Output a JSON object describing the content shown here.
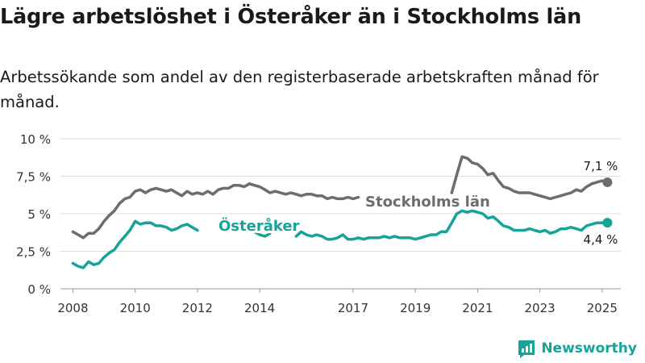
{
  "title": "Lägre arbetslöshet i Österåker än i Stockholms län",
  "subtitle": "Arbetssökande som andel av den registerbaserade arbetskraften månad för månad.",
  "brand": {
    "name": "Newsworthy",
    "icon": "bar-chart-logo-icon",
    "color": "#17A398"
  },
  "chart_data": {
    "type": "line",
    "ylim": [
      0,
      10
    ],
    "xlim": [
      2007.6,
      2025.6
    ],
    "yticks": [
      {
        "value": 0,
        "label": "0 %"
      },
      {
        "value": 2.5,
        "label": "2,5 %"
      },
      {
        "value": 5,
        "label": "5 %"
      },
      {
        "value": 7.5,
        "label": "7,5 %"
      },
      {
        "value": 10,
        "label": "10 %"
      }
    ],
    "xticks": [
      {
        "value": 2008,
        "label": "2008"
      },
      {
        "value": 2010,
        "label": "2010"
      },
      {
        "value": 2012,
        "label": "2012"
      },
      {
        "value": 2014,
        "label": "2014"
      },
      {
        "value": 2017,
        "label": "2017"
      },
      {
        "value": 2019,
        "label": "2019"
      },
      {
        "value": 2021,
        "label": "2021"
      },
      {
        "value": 2023,
        "label": "2023"
      },
      {
        "value": 2025,
        "label": "2025"
      }
    ],
    "grid": true,
    "series": [
      {
        "name": "Stockholms län",
        "color": "#6D6D6D",
        "end_label": "7,1 %",
        "segments": [
          [
            [
              2008.0,
              3.8
            ],
            [
              2008.17,
              3.6
            ],
            [
              2008.33,
              3.4
            ],
            [
              2008.5,
              3.7
            ],
            [
              2008.67,
              3.7
            ],
            [
              2008.83,
              4.0
            ],
            [
              2009.0,
              4.5
            ],
            [
              2009.17,
              4.9
            ],
            [
              2009.33,
              5.2
            ],
            [
              2009.5,
              5.7
            ],
            [
              2009.67,
              6.0
            ],
            [
              2009.83,
              6.1
            ],
            [
              2010.0,
              6.5
            ],
            [
              2010.17,
              6.6
            ],
            [
              2010.33,
              6.4
            ],
            [
              2010.5,
              6.6
            ],
            [
              2010.67,
              6.7
            ],
            [
              2010.83,
              6.6
            ],
            [
              2011.0,
              6.5
            ],
            [
              2011.17,
              6.6
            ],
            [
              2011.33,
              6.4
            ],
            [
              2011.5,
              6.2
            ],
            [
              2011.67,
              6.5
            ],
            [
              2011.83,
              6.3
            ],
            [
              2012.0,
              6.4
            ],
            [
              2012.17,
              6.3
            ],
            [
              2012.33,
              6.5
            ],
            [
              2012.5,
              6.3
            ],
            [
              2012.67,
              6.6
            ],
            [
              2012.83,
              6.7
            ],
            [
              2013.0,
              6.7
            ],
            [
              2013.17,
              6.9
            ],
            [
              2013.33,
              6.9
            ],
            [
              2013.5,
              6.8
            ],
            [
              2013.67,
              7.0
            ],
            [
              2013.83,
              6.9
            ],
            [
              2014.0,
              6.8
            ],
            [
              2014.17,
              6.6
            ],
            [
              2014.33,
              6.4
            ],
            [
              2014.5,
              6.5
            ],
            [
              2014.67,
              6.4
            ],
            [
              2014.83,
              6.3
            ],
            [
              2015.0,
              6.4
            ],
            [
              2015.17,
              6.3
            ],
            [
              2015.33,
              6.2
            ],
            [
              2015.5,
              6.3
            ],
            [
              2015.67,
              6.3
            ],
            [
              2015.83,
              6.2
            ],
            [
              2016.0,
              6.2
            ],
            [
              2016.17,
              6.0
            ],
            [
              2016.33,
              6.1
            ],
            [
              2016.5,
              6.0
            ],
            [
              2016.67,
              6.0
            ],
            [
              2016.83,
              6.1
            ],
            [
              2017.0,
              6.0
            ],
            [
              2017.17,
              6.1
            ]
          ],
          [
            [
              2020.17,
              6.4
            ],
            [
              2020.33,
              7.6
            ],
            [
              2020.5,
              8.8
            ],
            [
              2020.67,
              8.7
            ],
            [
              2020.83,
              8.4
            ],
            [
              2021.0,
              8.3
            ],
            [
              2021.17,
              8.0
            ],
            [
              2021.33,
              7.6
            ],
            [
              2021.5,
              7.7
            ],
            [
              2021.67,
              7.2
            ],
            [
              2021.83,
              6.8
            ],
            [
              2022.0,
              6.7
            ],
            [
              2022.17,
              6.5
            ],
            [
              2022.33,
              6.4
            ],
            [
              2022.5,
              6.4
            ],
            [
              2022.67,
              6.4
            ],
            [
              2022.83,
              6.3
            ],
            [
              2023.0,
              6.2
            ],
            [
              2023.17,
              6.1
            ],
            [
              2023.33,
              6.0
            ],
            [
              2023.5,
              6.1
            ],
            [
              2023.67,
              6.2
            ],
            [
              2023.83,
              6.3
            ],
            [
              2024.0,
              6.4
            ],
            [
              2024.17,
              6.6
            ],
            [
              2024.33,
              6.5
            ],
            [
              2024.5,
              6.8
            ],
            [
              2024.67,
              7.0
            ],
            [
              2024.83,
              7.1
            ],
            [
              2025.0,
              7.2
            ],
            [
              2025.17,
              7.1
            ]
          ]
        ]
      },
      {
        "name": "Österåker",
        "color": "#17A398",
        "end_label": "4,4 %",
        "segments": [
          [
            [
              2008.0,
              1.7
            ],
            [
              2008.17,
              1.5
            ],
            [
              2008.33,
              1.4
            ],
            [
              2008.5,
              1.8
            ],
            [
              2008.67,
              1.6
            ],
            [
              2008.83,
              1.7
            ],
            [
              2009.0,
              2.1
            ],
            [
              2009.17,
              2.4
            ],
            [
              2009.33,
              2.6
            ],
            [
              2009.5,
              3.1
            ],
            [
              2009.67,
              3.5
            ],
            [
              2009.83,
              3.9
            ],
            [
              2010.0,
              4.5
            ],
            [
              2010.17,
              4.3
            ],
            [
              2010.33,
              4.4
            ],
            [
              2010.5,
              4.4
            ],
            [
              2010.67,
              4.2
            ],
            [
              2010.83,
              4.2
            ],
            [
              2011.0,
              4.1
            ],
            [
              2011.17,
              3.9
            ],
            [
              2011.33,
              4.0
            ],
            [
              2011.5,
              4.2
            ],
            [
              2011.67,
              4.3
            ],
            [
              2011.83,
              4.1
            ],
            [
              2012.0,
              3.9
            ]
          ],
          [
            [
              2013.83,
              3.8
            ],
            [
              2014.0,
              3.6
            ],
            [
              2014.17,
              3.5
            ],
            [
              2014.33,
              3.7
            ]
          ],
          [
            [
              2015.17,
              3.5
            ],
            [
              2015.33,
              3.8
            ],
            [
              2015.5,
              3.6
            ],
            [
              2015.67,
              3.5
            ],
            [
              2015.83,
              3.6
            ],
            [
              2016.0,
              3.5
            ],
            [
              2016.17,
              3.3
            ],
            [
              2016.33,
              3.3
            ],
            [
              2016.5,
              3.4
            ],
            [
              2016.67,
              3.6
            ],
            [
              2016.83,
              3.3
            ],
            [
              2017.0,
              3.3
            ],
            [
              2017.17,
              3.4
            ],
            [
              2017.33,
              3.3
            ],
            [
              2017.5,
              3.4
            ],
            [
              2017.67,
              3.4
            ],
            [
              2017.83,
              3.4
            ],
            [
              2018.0,
              3.5
            ],
            [
              2018.17,
              3.4
            ],
            [
              2018.33,
              3.5
            ],
            [
              2018.5,
              3.4
            ],
            [
              2018.67,
              3.4
            ],
            [
              2018.83,
              3.4
            ],
            [
              2019.0,
              3.3
            ],
            [
              2019.17,
              3.4
            ],
            [
              2019.33,
              3.5
            ],
            [
              2019.5,
              3.6
            ],
            [
              2019.67,
              3.6
            ],
            [
              2019.83,
              3.8
            ],
            [
              2020.0,
              3.8
            ],
            [
              2020.17,
              4.4
            ],
            [
              2020.33,
              5.0
            ],
            [
              2020.5,
              5.2
            ],
            [
              2020.67,
              5.1
            ],
            [
              2020.83,
              5.2
            ],
            [
              2021.0,
              5.1
            ],
            [
              2021.17,
              5.0
            ],
            [
              2021.33,
              4.7
            ],
            [
              2021.5,
              4.8
            ],
            [
              2021.67,
              4.5
            ],
            [
              2021.83,
              4.2
            ],
            [
              2022.0,
              4.1
            ],
            [
              2022.17,
              3.9
            ],
            [
              2022.33,
              3.9
            ],
            [
              2022.5,
              3.9
            ],
            [
              2022.67,
              4.0
            ],
            [
              2022.83,
              3.9
            ],
            [
              2023.0,
              3.8
            ],
            [
              2023.17,
              3.9
            ],
            [
              2023.33,
              3.7
            ],
            [
              2023.5,
              3.8
            ],
            [
              2023.67,
              4.0
            ],
            [
              2023.83,
              4.0
            ],
            [
              2024.0,
              4.1
            ],
            [
              2024.17,
              4.0
            ],
            [
              2024.33,
              3.9
            ],
            [
              2024.5,
              4.2
            ],
            [
              2024.67,
              4.3
            ],
            [
              2024.83,
              4.4
            ],
            [
              2025.0,
              4.4
            ],
            [
              2025.17,
              4.4
            ]
          ]
        ]
      }
    ]
  }
}
